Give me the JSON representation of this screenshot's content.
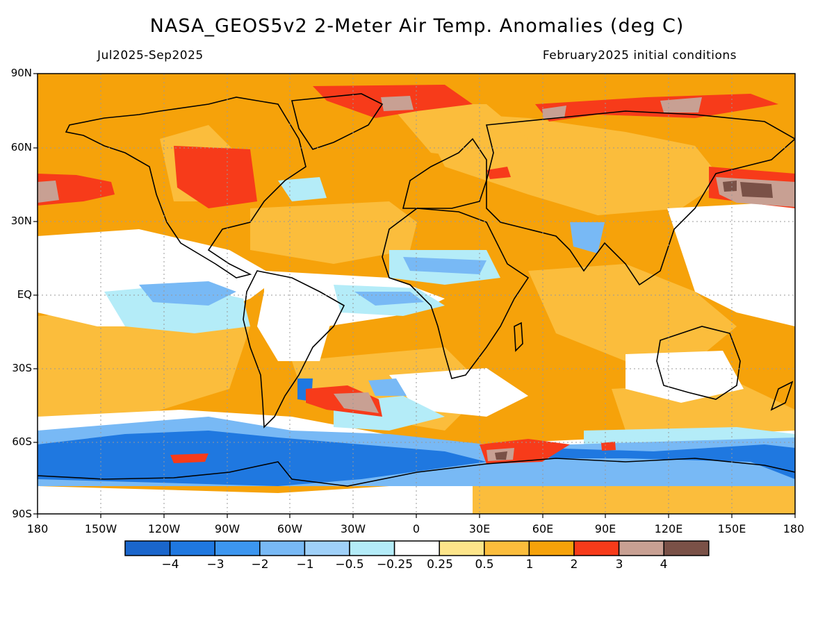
{
  "header": {
    "title": "NASA_GEOS5v2 2-Meter Air Temp. Anomalies (deg C)",
    "period": "Jul2025-Sep2025",
    "init": "February2025 initial conditions"
  },
  "axes": {
    "lat_labels": [
      "90N",
      "60N",
      "30N",
      "EQ",
      "30S",
      "60S",
      "90S"
    ],
    "lon_labels": [
      "180",
      "150W",
      "120W",
      "90W",
      "60W",
      "30W",
      "0",
      "30E",
      "60E",
      "90E",
      "120E",
      "150E",
      "180"
    ]
  },
  "colorbar": {
    "labels": [
      "−4",
      "−3",
      "−2",
      "−1",
      "−0.5",
      "−0.25",
      "0.25",
      "0.5",
      "1",
      "2",
      "3",
      "4"
    ],
    "colors": [
      "#1a66cc",
      "#1f78e0",
      "#3c96f0",
      "#78b9f5",
      "#9fd0f8",
      "#b4ecf8",
      "#ffffff",
      "#fde58a",
      "#fbbd3c",
      "#f6a20a",
      "#f73b1a",
      "#c8a093",
      "#7a5147"
    ]
  },
  "map_colors": {
    "ocean_base": "#f6a20a",
    "warm_light": "#fbbd3c",
    "neutral": "#ffffff",
    "cool_light": "#b4ecf8",
    "cool": "#78b9f5",
    "cold": "#1f78e0",
    "hot": "#f73b1a",
    "very_hot": "#c8a093",
    "extreme": "#7a5147",
    "coast": "#000000"
  }
}
